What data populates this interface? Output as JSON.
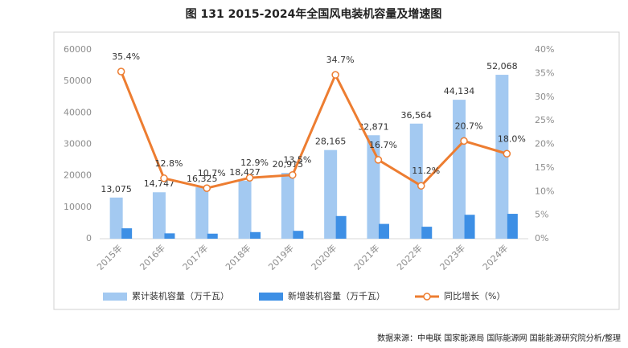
{
  "chart_data": {
    "type": "bar",
    "title": "图 131 2015-2024年全国风电装机容量及增速图",
    "source": "数据来源：中电联 国家能源局 国际能源网 国能能源研究院分析/整理",
    "categories": [
      "2015年",
      "2016年",
      "2017年",
      "2018年",
      "2019年",
      "2020年",
      "2021年",
      "2022年",
      "2023年",
      "2024年"
    ],
    "series": [
      {
        "name": "累计装机容量（万千瓦）",
        "type": "bar",
        "color": "#a3c9f1",
        "values": [
          13075,
          14747,
          16325,
          18427,
          20915,
          28165,
          32871,
          36564,
          44134,
          52068
        ],
        "value_labels": [
          "13,075",
          "14,747",
          "16,325",
          "18,427",
          "20,915",
          "28,165",
          "32,871",
          "36,564",
          "44,134",
          "52,068"
        ]
      },
      {
        "name": "新增装机容量（万千瓦）",
        "type": "bar",
        "color": "#3d8fe5",
        "values": [
          3300,
          1700,
          1600,
          2100,
          2500,
          7200,
          4700,
          3800,
          7600,
          7900
        ]
      },
      {
        "name": "同比增长（%）",
        "type": "line",
        "axis": "y2",
        "color": "#ed7d31",
        "values": [
          35.4,
          12.8,
          10.7,
          12.9,
          13.5,
          34.7,
          16.7,
          11.2,
          20.7,
          18.0
        ],
        "value_labels": [
          "35.4%",
          "12.8%",
          "10.7%",
          "12.9%",
          "13.5%",
          "34.7%",
          "16.7%",
          "11.2%",
          "20.7%",
          "18.0%"
        ]
      }
    ],
    "ylim": [
      0,
      60000
    ],
    "yticks": [
      0,
      10000,
      20000,
      30000,
      40000,
      50000,
      60000
    ],
    "y2lim": [
      0,
      40
    ],
    "y2ticks": [
      {
        "value": 0,
        "label": "0%"
      },
      {
        "value": 5,
        "label": "5%"
      },
      {
        "value": 10,
        "label": "10%"
      },
      {
        "value": 15,
        "label": "15%"
      },
      {
        "value": 20,
        "label": "20%"
      },
      {
        "value": 25,
        "label": "25%"
      },
      {
        "value": 30,
        "label": "30%"
      },
      {
        "value": 35,
        "label": "35%"
      },
      {
        "value": 40,
        "label": "40%"
      }
    ],
    "grid": false
  }
}
